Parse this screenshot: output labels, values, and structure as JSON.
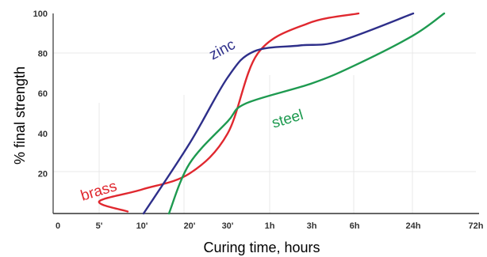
{
  "chart_data": {
    "type": "line",
    "title": "",
    "xlabel": "Curing time, hours",
    "ylabel": "% final strength",
    "x_ticks": [
      "0",
      "5'",
      "10'",
      "20'",
      "30'",
      "1h",
      "3h",
      "6h",
      "24h",
      "72h"
    ],
    "y_ticks": [
      20,
      40,
      60,
      80,
      100
    ],
    "ylim": [
      0,
      100
    ],
    "grid": false,
    "x_scale_note": "non-uniform categorical time axis",
    "series": [
      {
        "name": "brass",
        "color": "#e0282f",
        "points": [
          {
            "x": "5'",
            "y": 1
          },
          {
            "x": "5'",
            "y": 6
          },
          {
            "x": "10'",
            "y": 12
          },
          {
            "x": "20'",
            "y": 20
          },
          {
            "x": "30'",
            "y": 40
          },
          {
            "x": "1h",
            "y": 80
          },
          {
            "x": "3h",
            "y": 95
          },
          {
            "x": "6h",
            "y": 100
          }
        ]
      },
      {
        "name": "zinc",
        "color": "#2e2f8a",
        "points": [
          {
            "x": "10'",
            "y": 0
          },
          {
            "x": "20'",
            "y": 35
          },
          {
            "x": "30'",
            "y": 68
          },
          {
            "x": "1h",
            "y": 81
          },
          {
            "x": "3h",
            "y": 84
          },
          {
            "x": "6h",
            "y": 86
          },
          {
            "x": "24h",
            "y": 100
          }
        ]
      },
      {
        "name": "steel",
        "color": "#1e9a50",
        "points": [
          {
            "x": "10'",
            "y": 0
          },
          {
            "x": "20'",
            "y": 25
          },
          {
            "x": "30'",
            "y": 46
          },
          {
            "x": "1h",
            "y": 55
          },
          {
            "x": "3h",
            "y": 65
          },
          {
            "x": "6h",
            "y": 74
          },
          {
            "x": "24h",
            "y": 89
          },
          {
            "x": "72h",
            "y": 100
          }
        ]
      }
    ]
  }
}
